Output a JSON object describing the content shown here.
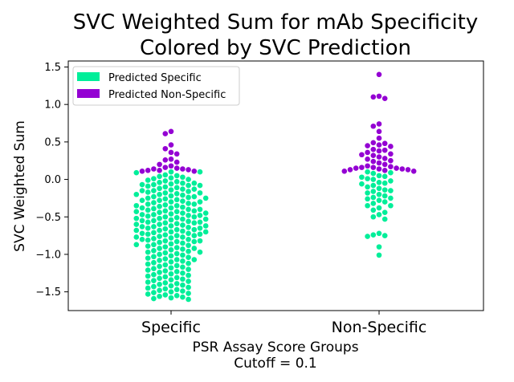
{
  "chart_data": {
    "type": "scatter",
    "subtype": "swarm",
    "title_line1": "SVC Weighted Sum for mAb Specificity",
    "title_line2": "Colored by SVC Prediction",
    "xlabel_line1": "PSR Assay Score Groups",
    "xlabel_line2": "Cutoff = 0.1",
    "ylabel": "SVC Weighted Sum",
    "categories": [
      "Specific",
      "Non-Specific"
    ],
    "ylim": [
      -1.75,
      1.58
    ],
    "yticks": [
      -1.5,
      -1.0,
      -0.5,
      0.0,
      0.5,
      1.0,
      1.5
    ],
    "ytick_labels": [
      "−1.5",
      "−1.0",
      "−0.5",
      "0.0",
      "0.5",
      "1.0",
      "1.5"
    ],
    "cutoff": 0.1,
    "colors": {
      "specific": "#00ee99",
      "non_specific": "#9400d3"
    },
    "legend": {
      "position": "upper-left",
      "entries": [
        {
          "label": "Predicted Specific",
          "color": "#00ee99"
        },
        {
          "label": "Predicted Non-Specific",
          "color": "#9400d3"
        }
      ]
    },
    "series": [
      {
        "group": "Specific",
        "values": [
          0.64,
          0.61,
          0.46,
          0.41,
          0.36,
          0.34,
          0.27,
          0.26,
          0.23,
          0.2,
          0.18,
          0.16,
          0.15,
          0.14,
          0.14,
          0.13,
          0.12,
          0.12,
          0.11,
          0.11,
          0.1,
          0.1,
          0.09,
          0.06,
          0.05,
          0.04,
          0.03,
          0.02,
          0.01,
          0.0,
          -0.01,
          -0.02,
          -0.03,
          -0.04,
          -0.05,
          -0.06,
          -0.07,
          -0.07,
          -0.08,
          -0.09,
          -0.1,
          -0.11,
          -0.12,
          -0.13,
          -0.14,
          -0.15,
          -0.16,
          -0.17,
          -0.18,
          -0.19,
          -0.2,
          -0.21,
          -0.22,
          -0.23,
          -0.24,
          -0.25,
          -0.26,
          -0.27,
          -0.28,
          -0.29,
          -0.3,
          -0.31,
          -0.32,
          -0.33,
          -0.34,
          -0.35,
          -0.36,
          -0.37,
          -0.38,
          -0.39,
          -0.4,
          -0.41,
          -0.42,
          -0.43,
          -0.44,
          -0.45,
          -0.46,
          -0.47,
          -0.48,
          -0.49,
          -0.5,
          -0.51,
          -0.52,
          -0.53,
          -0.54,
          -0.55,
          -0.56,
          -0.57,
          -0.58,
          -0.59,
          -0.6,
          -0.61,
          -0.62,
          -0.63,
          -0.64,
          -0.65,
          -0.66,
          -0.67,
          -0.68,
          -0.69,
          -0.7,
          -0.71,
          -0.72,
          -0.73,
          -0.74,
          -0.75,
          -0.76,
          -0.77,
          -0.78,
          -0.79,
          -0.8,
          -0.81,
          -0.82,
          -0.83,
          -0.84,
          -0.85,
          -0.86,
          -0.87,
          -0.88,
          -0.89,
          -0.9,
          -0.91,
          -0.92,
          -0.93,
          -0.94,
          -0.95,
          -0.96,
          -0.97,
          -0.98,
          -0.99,
          -1.0,
          -1.01,
          -1.02,
          -1.03,
          -1.04,
          -1.05,
          -1.06,
          -1.07,
          -1.08,
          -1.09,
          -1.1,
          -1.11,
          -1.12,
          -1.13,
          -1.14,
          -1.15,
          -1.16,
          -1.17,
          -1.18,
          -1.19,
          -1.2,
          -1.21,
          -1.22,
          -1.23,
          -1.24,
          -1.25,
          -1.26,
          -1.27,
          -1.28,
          -1.29,
          -1.3,
          -1.31,
          -1.32,
          -1.33,
          -1.34,
          -1.35,
          -1.36,
          -1.37,
          -1.38,
          -1.39,
          -1.4,
          -1.41,
          -1.42,
          -1.43,
          -1.44,
          -1.45,
          -1.46,
          -1.47,
          -1.48,
          -1.49,
          -1.5,
          -1.51,
          -1.52,
          -1.53,
          -1.54,
          -1.55,
          -1.56,
          -1.57,
          -1.58,
          -1.59,
          -1.6,
          -0.4,
          -0.5,
          -0.6,
          -0.7,
          -0.8,
          -0.3,
          -0.2,
          -0.45,
          -0.55,
          -0.65,
          -0.75,
          -0.35,
          -0.25,
          -0.15,
          -0.05,
          -0.42,
          -0.52,
          -0.62,
          -0.72,
          -0.82,
          -0.92,
          -0.48,
          -0.58,
          -0.68,
          -0.38,
          -0.28,
          -0.18,
          -0.08,
          -0.43,
          -0.53,
          -0.63,
          -0.73,
          -0.83,
          -0.33,
          -0.23,
          -0.13,
          -0.47,
          -0.57,
          -0.67,
          -0.77,
          -0.87,
          -0.97,
          -1.07
        ],
        "threshold_for_color": 0.1
      },
      {
        "group": "Non-Specific",
        "values": [
          1.4,
          1.11,
          1.1,
          1.08,
          0.74,
          0.71,
          0.64,
          0.55,
          0.49,
          0.48,
          0.46,
          0.45,
          0.44,
          0.4,
          0.39,
          0.38,
          0.36,
          0.34,
          0.33,
          0.32,
          0.3,
          0.28,
          0.27,
          0.25,
          0.24,
          0.22,
          0.2,
          0.18,
          0.17,
          0.16,
          0.16,
          0.15,
          0.15,
          0.14,
          0.14,
          0.13,
          0.13,
          0.12,
          0.11,
          0.11,
          0.1,
          0.09,
          0.08,
          0.05,
          0.04,
          0.03,
          0.01,
          0.0,
          -0.02,
          -0.04,
          -0.06,
          -0.08,
          -0.1,
          -0.12,
          -0.14,
          -0.16,
          -0.18,
          -0.2,
          -0.22,
          -0.24,
          -0.26,
          -0.28,
          -0.3,
          -0.32,
          -0.35,
          -0.38,
          -0.41,
          -0.44,
          -0.47,
          -0.5,
          -0.53,
          -0.72,
          -0.74,
          -0.75,
          -0.76,
          -0.9,
          -1.01,
          -0.05,
          -0.15,
          -0.25,
          -0.35
        ],
        "threshold_for_color": 0.1
      }
    ]
  }
}
